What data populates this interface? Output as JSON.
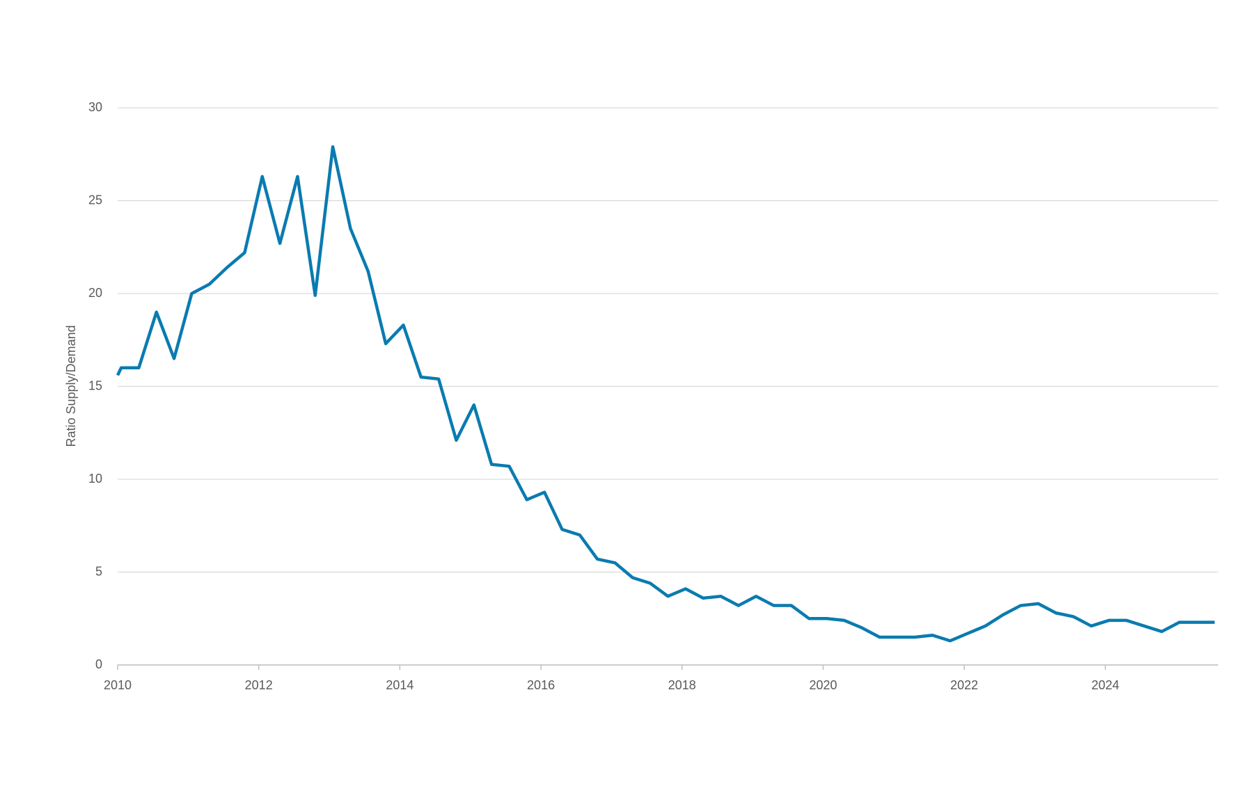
{
  "chart_data": {
    "type": "line",
    "y_label": "Ratio Supply/Demand",
    "x": [
      2010.0,
      2010.05,
      2010.3,
      2010.55,
      2010.8,
      2011.05,
      2011.3,
      2011.55,
      2011.8,
      2012.05,
      2012.3,
      2012.55,
      2012.8,
      2013.05,
      2013.3,
      2013.55,
      2013.8,
      2014.05,
      2014.3,
      2014.55,
      2014.8,
      2015.05,
      2015.3,
      2015.55,
      2015.8,
      2016.05,
      2016.3,
      2016.55,
      2016.8,
      2017.05,
      2017.3,
      2017.55,
      2017.8,
      2018.05,
      2018.3,
      2018.55,
      2018.8,
      2019.05,
      2019.3,
      2019.55,
      2019.8,
      2020.05,
      2020.3,
      2020.55,
      2020.8,
      2021.05,
      2021.3,
      2021.55,
      2021.8,
      2022.05,
      2022.3,
      2022.55,
      2022.8,
      2023.05,
      2023.3,
      2023.55,
      2023.8,
      2024.05,
      2024.3,
      2024.55,
      2024.8,
      2025.05,
      2025.3,
      2025.55
    ],
    "series": [
      {
        "color": "#0a7bb0",
        "values": [
          15.6,
          16.0,
          16.0,
          19.0,
          16.5,
          20.0,
          20.5,
          21.4,
          22.2,
          26.3,
          22.7,
          26.3,
          19.9,
          27.9,
          23.5,
          21.2,
          17.3,
          18.3,
          15.5,
          15.4,
          12.1,
          14.0,
          10.8,
          10.7,
          8.9,
          9.3,
          7.3,
          7.0,
          5.7,
          5.5,
          4.7,
          4.4,
          3.7,
          4.1,
          3.6,
          3.7,
          3.2,
          3.7,
          3.2,
          3.2,
          2.5,
          2.5,
          2.4,
          2.0,
          1.5,
          1.5,
          1.5,
          1.6,
          1.3,
          1.7,
          2.1,
          2.7,
          3.2,
          3.3,
          2.8,
          2.6,
          2.1,
          2.4,
          2.4,
          2.1,
          1.8,
          2.3,
          2.3,
          2.3
        ]
      }
    ],
    "xlim": [
      2010,
      2025.6
    ],
    "xticks": [
      2010,
      2012,
      2014,
      2016,
      2018,
      2020,
      2022,
      2024
    ],
    "ylim": [
      0,
      30
    ],
    "yticks": [
      0,
      5,
      10,
      15,
      20,
      25,
      30
    ],
    "grid": true
  }
}
